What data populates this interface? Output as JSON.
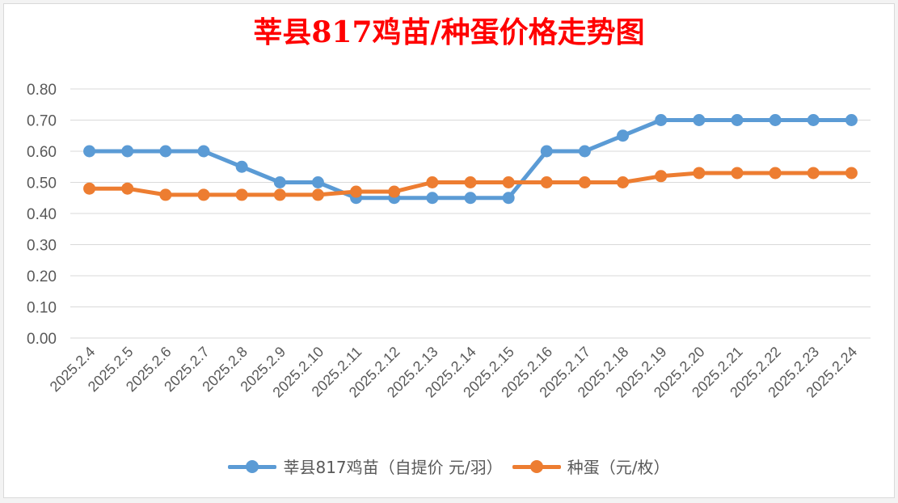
{
  "chart_data": {
    "type": "line",
    "title": "莘县817鸡苗/种蛋价格走势图",
    "categories": [
      "2025.2.4",
      "2025.2.5",
      "2025.2.6",
      "2025.2.7",
      "2025.2.8",
      "2025.2.9",
      "2025.2.10",
      "2025.2.11",
      "2025.2.12",
      "2025.2.13",
      "2025.2.14",
      "2025.2.15",
      "2025.2.16",
      "2025.2.17",
      "2025.2.18",
      "2025.2.19",
      "2025.2.20",
      "2025.2.21",
      "2025.2.22",
      "2025.2.23",
      "2025.2.24"
    ],
    "series": [
      {
        "name": "莘县817鸡苗（自提价 元/羽）",
        "color": "#5b9bd5",
        "values": [
          0.6,
          0.6,
          0.6,
          0.6,
          0.55,
          0.5,
          0.5,
          0.45,
          0.45,
          0.45,
          0.45,
          0.45,
          0.6,
          0.6,
          0.65,
          0.7,
          0.7,
          0.7,
          0.7,
          0.7,
          0.7
        ]
      },
      {
        "name": "种蛋（元/枚）",
        "color": "#ed7d31",
        "values": [
          0.48,
          0.48,
          0.46,
          0.46,
          0.46,
          0.46,
          0.46,
          0.47,
          0.47,
          0.5,
          0.5,
          0.5,
          0.5,
          0.5,
          0.5,
          0.52,
          0.53,
          0.53,
          0.53,
          0.53,
          0.53
        ]
      }
    ],
    "ylim": [
      0,
      0.8
    ],
    "yticks": [
      "0.00",
      "0.10",
      "0.20",
      "0.30",
      "0.40",
      "0.50",
      "0.60",
      "0.70",
      "0.80"
    ],
    "grid": true,
    "legend": "bottom",
    "title_color": "#ff0000"
  }
}
